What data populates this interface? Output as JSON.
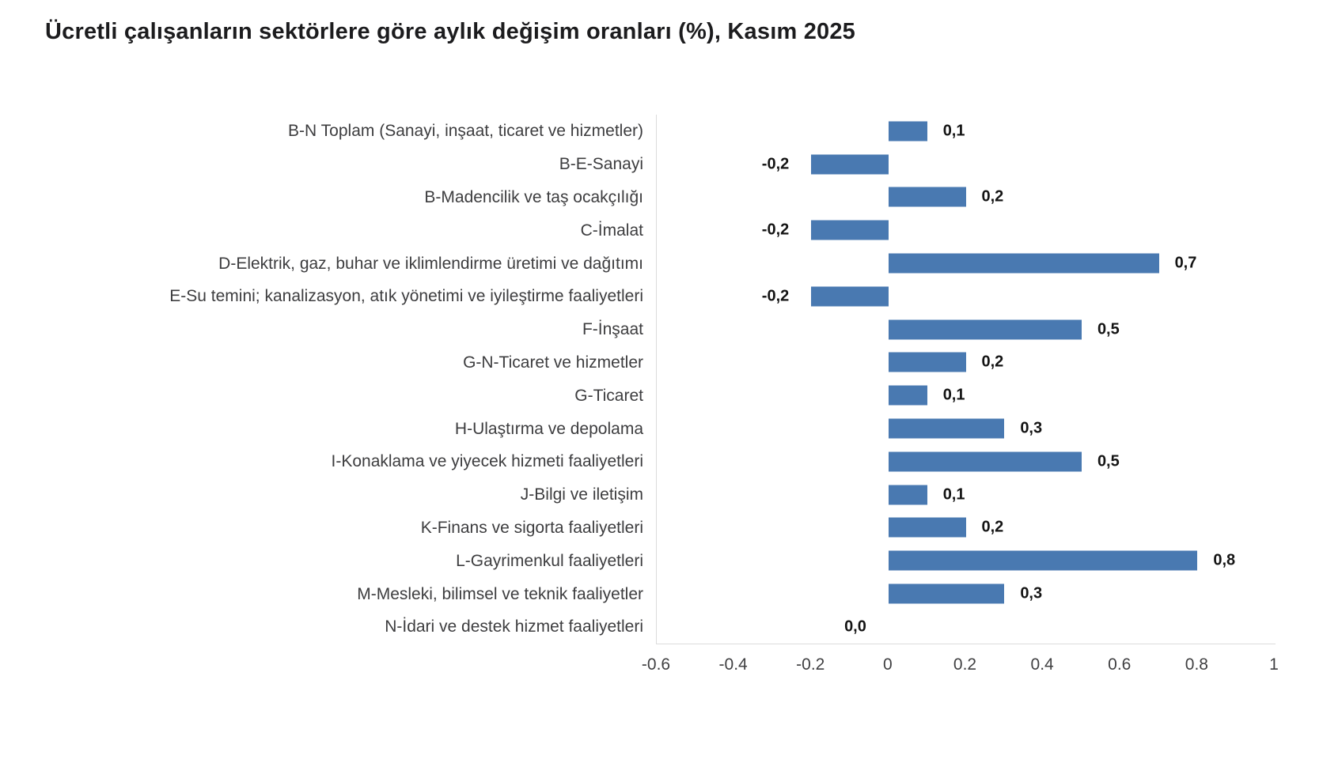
{
  "title": "Ücretli çalışanların sektörlere göre aylık değişim oranları (%), Kasım 2025",
  "colors": {
    "bar": "#4979B1",
    "axis_line": "#DCDCDC",
    "title_text": "#1C1C1E",
    "category_text": "#3D3D3F",
    "value_text": "#141414",
    "tick_text": "#404042",
    "background": "#FFFFFF"
  },
  "chart_data": {
    "type": "bar",
    "orientation": "horizontal",
    "title": "Ücretli çalışanların sektörlere göre aylık değişim oranları (%), Kasım 2025",
    "xlabel": "",
    "ylabel": "",
    "xlim": [
      -0.6,
      1
    ],
    "x_ticks": [
      "-0.6",
      "-0.4",
      "-0.2",
      "0",
      "0.2",
      "0.4",
      "0.6",
      "0.8",
      "1"
    ],
    "grid": false,
    "legend": false,
    "decimal_separator_in_value_labels": ",",
    "categories": [
      "B-N Toplam (Sanayi, inşaat, ticaret ve hizmetler)",
      "B-E-Sanayi",
      "B-Madencilik ve taş ocakçılığı",
      "C-İmalat",
      "D-Elektrik, gaz, buhar ve iklimlendirme üretimi ve dağıtımı",
      "E-Su temini; kanalizasyon, atık yönetimi ve iyileştirme faaliyetleri",
      "F-İnşaat",
      "G-N-Ticaret ve hizmetler",
      "G-Ticaret",
      "H-Ulaştırma ve depolama",
      "I-Konaklama ve yiyecek hizmeti faaliyetleri",
      "J-Bilgi ve iletişim",
      "K-Finans ve sigorta faaliyetleri",
      "L-Gayrimenkul faaliyetleri",
      "M-Mesleki, bilimsel ve teknik faaliyetler",
      "N-İdari ve destek hizmet faaliyetleri"
    ],
    "values": [
      0.1,
      -0.2,
      0.2,
      -0.2,
      0.7,
      -0.2,
      0.5,
      0.2,
      0.1,
      0.3,
      0.5,
      0.1,
      0.2,
      0.8,
      0.3,
      0.0
    ],
    "value_labels": [
      "0,1",
      "-0,2",
      "0,2",
      "-0,2",
      "0,7",
      "-0,2",
      "0,5",
      "0,2",
      "0,1",
      "0,3",
      "0,5",
      "0,1",
      "0,2",
      "0,8",
      "0,3",
      "0,0"
    ]
  }
}
